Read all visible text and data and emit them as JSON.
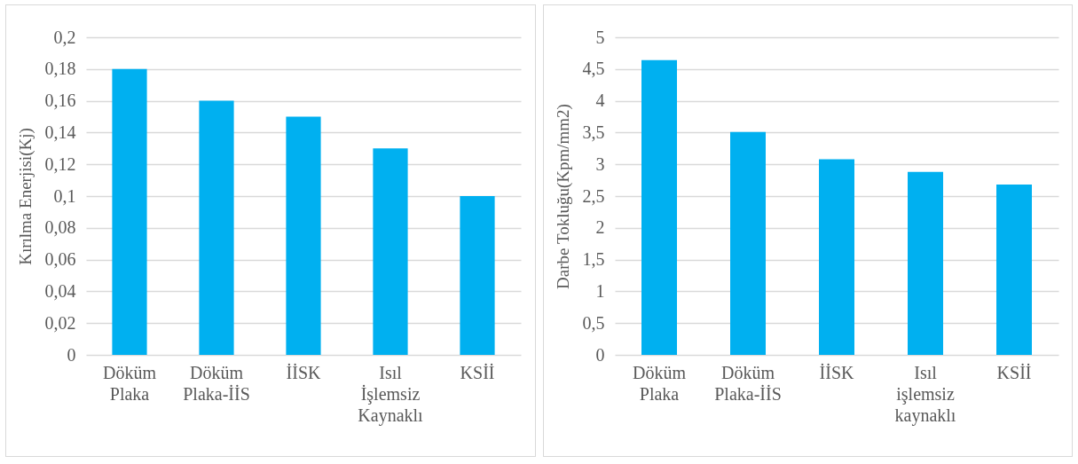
{
  "chart_data": [
    {
      "type": "bar",
      "ylabel": "Kırılma Enerjisi(Kj)",
      "categories": [
        "Döküm Plaka",
        "Döküm Plaka-İİS",
        "İİSK",
        "Isıl İşlemsiz Kaynaklı",
        "KSİİ"
      ],
      "values": [
        0.18,
        0.16,
        0.15,
        0.13,
        0.1
      ],
      "color": "#00b0f0",
      "ylim": [
        0,
        0.2
      ],
      "yticks": [
        0,
        {
          "value": 0.02,
          "label": "0,02"
        },
        {
          "value": 0.04,
          "label": "0,04"
        },
        {
          "value": 0.06,
          "label": "0,06"
        },
        {
          "value": 0.08,
          "label": "0,08"
        },
        {
          "value": 0.1,
          "label": "0,1"
        },
        {
          "value": 0.12,
          "label": "0,12"
        },
        {
          "value": 0.14,
          "label": "0,14"
        },
        {
          "value": 0.16,
          "label": "0,16"
        },
        {
          "value": 0.18,
          "label": "0,18"
        },
        {
          "value": 0.2,
          "label": "0,2"
        }
      ],
      "grid": "y"
    },
    {
      "type": "bar",
      "ylabel": "Darbe Tokluğu(Kpm/mm2)",
      "categories": [
        "Döküm Plaka",
        "Döküm Plaka-İİS",
        "İİSK",
        "Isıl işlemsiz kaynaklı",
        "KSİİ"
      ],
      "values": [
        4.64,
        3.51,
        3.08,
        2.88,
        2.68
      ],
      "color": "#00b0f0",
      "ylim": [
        0,
        5
      ],
      "yticks": [
        0,
        {
          "value": 0.5,
          "label": "0,5"
        },
        1,
        {
          "value": 1.5,
          "label": "1,5"
        },
        2,
        {
          "value": 2.5,
          "label": "2,5"
        },
        3,
        {
          "value": 3.5,
          "label": "3,5"
        },
        4,
        {
          "value": 4.5,
          "label": "4,5"
        },
        5
      ],
      "grid": "y"
    }
  ]
}
